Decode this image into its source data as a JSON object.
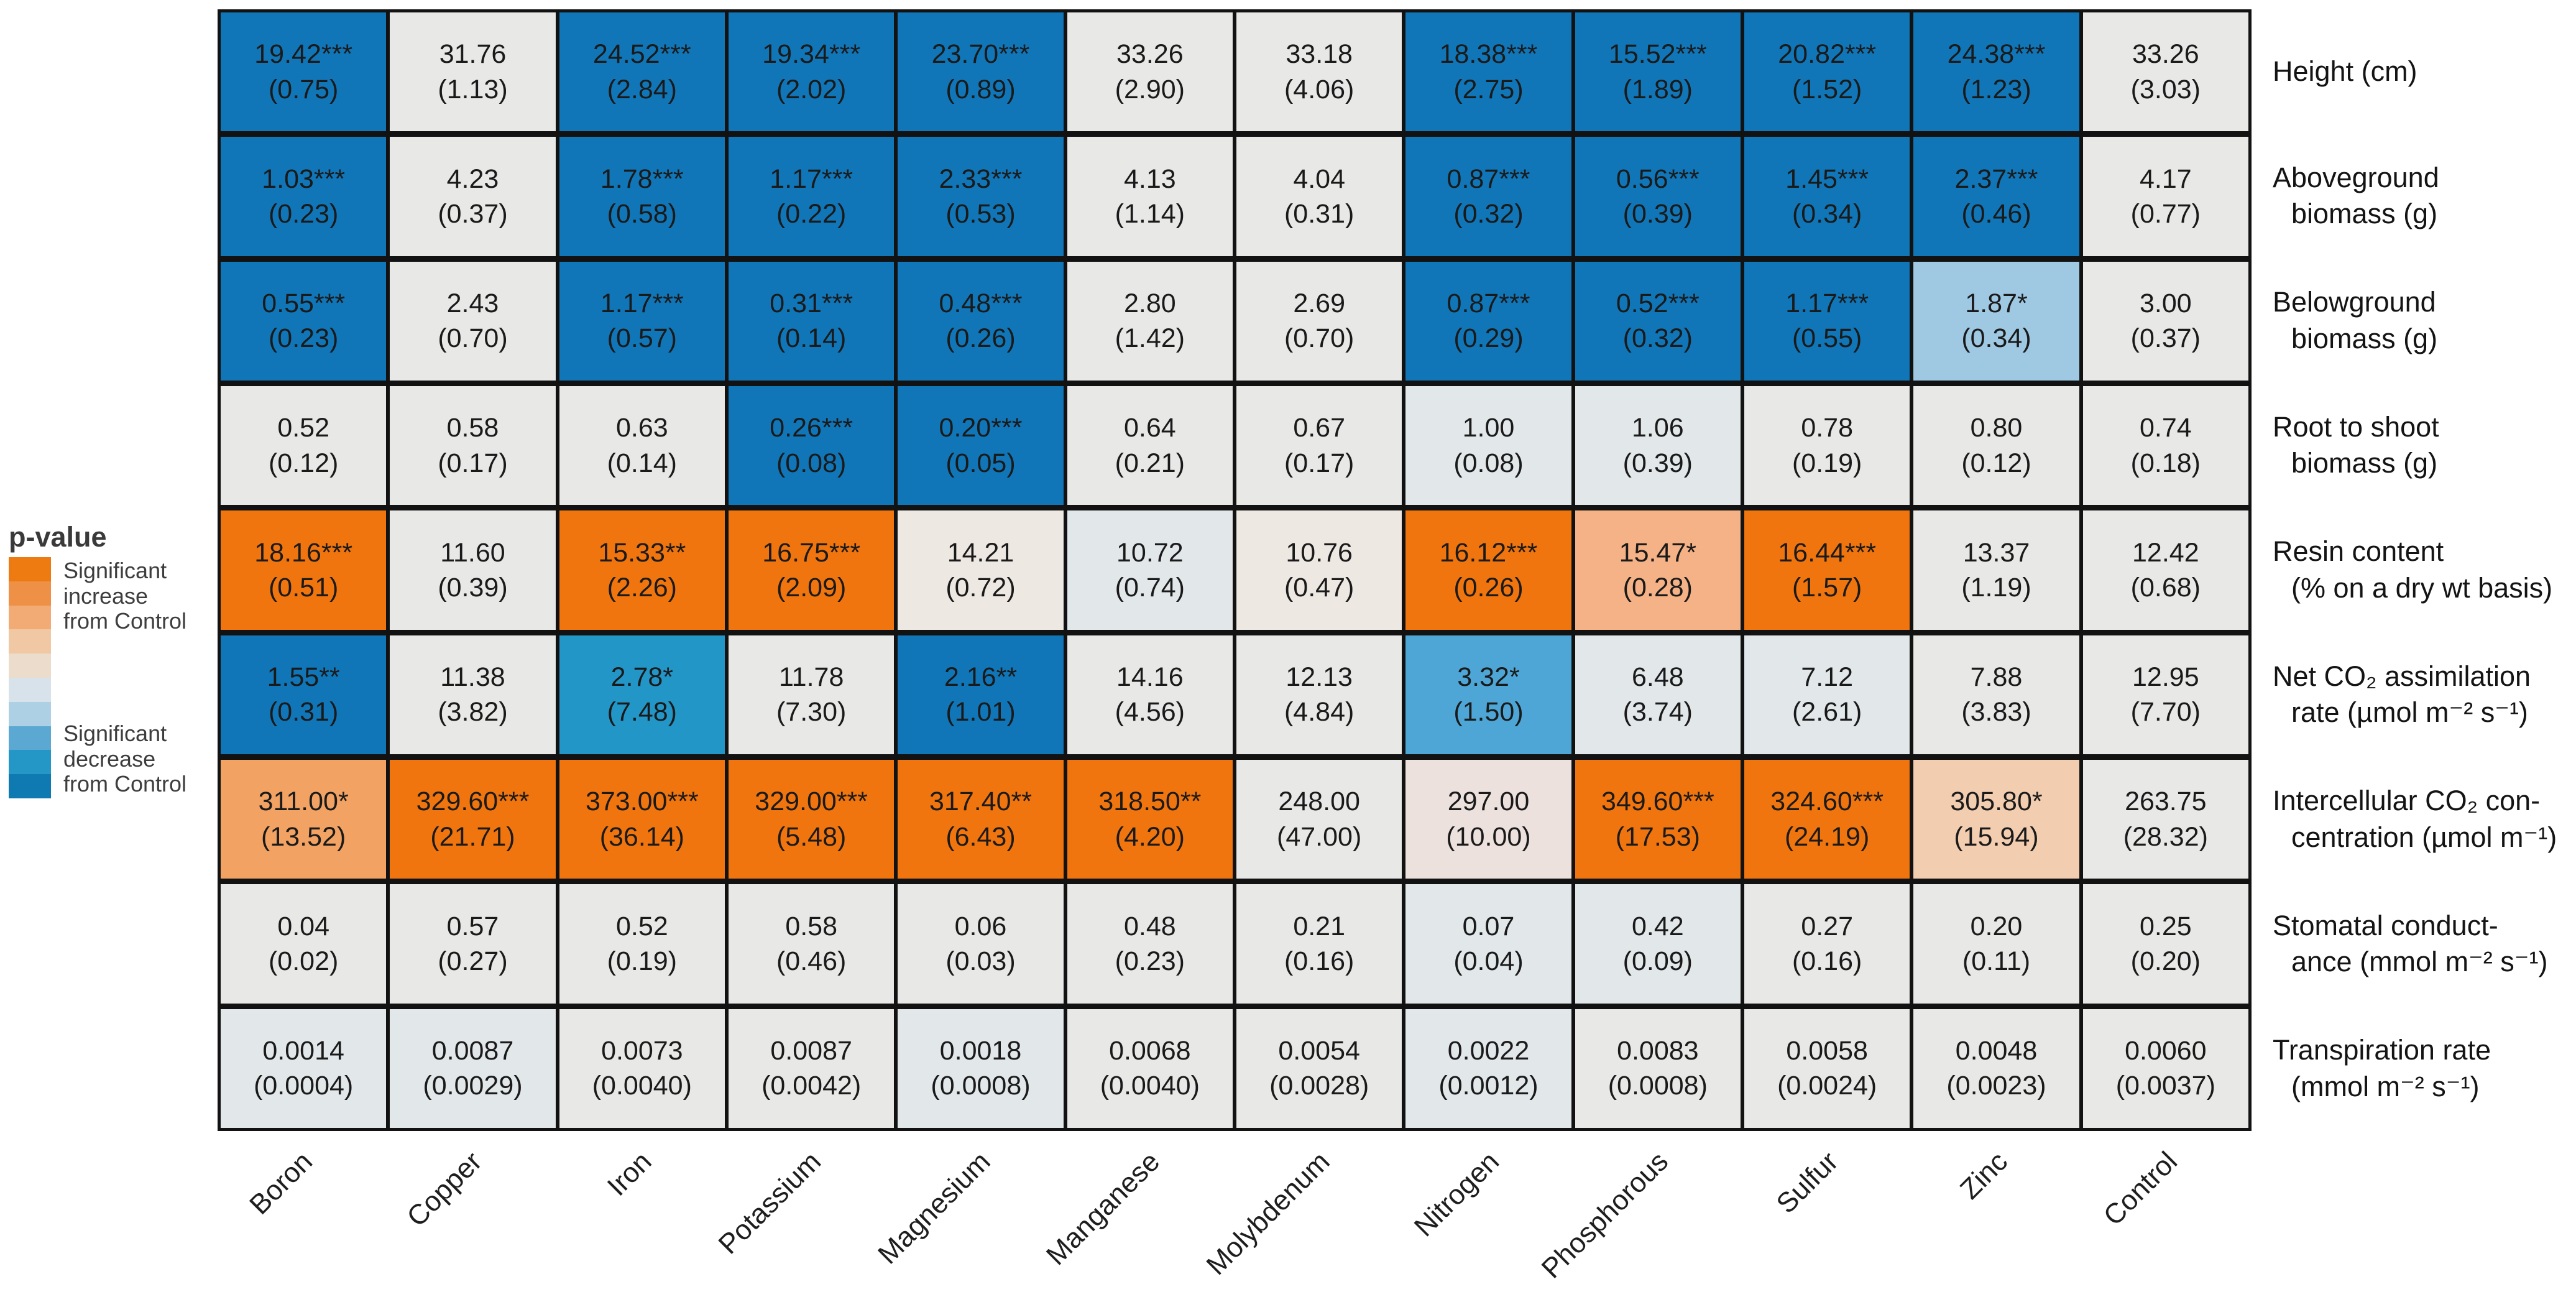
{
  "legend": {
    "title": "p-value",
    "increase_lines": [
      "Significant",
      "increase",
      "from Control"
    ],
    "decrease_lines": [
      "Significant",
      "decrease",
      "from Control"
    ],
    "gradient": [
      "#ee7b12",
      "#ee9045",
      "#f3ab75",
      "#f0c8a4",
      "#ebdccb",
      "#d8e2ea",
      "#aed0e4",
      "#5ba9d3",
      "#2497c6",
      "#0f79b2"
    ]
  },
  "palette": {
    "orange": "#f1750e",
    "orange2": "#f2a263",
    "orange3": "#f5b286",
    "orange4": "#f3cdb0",
    "grayp": "#ece1dd",
    "grayw": "#eee8e3",
    "gray": "#e8e8e7",
    "grayb": "#e2e7ea",
    "blue4": "#9fc9e3",
    "blue3": "#4ea6d6",
    "blue2": "#2396c8",
    "blue": "#1076b8"
  },
  "chart_data": {
    "type": "heatmap",
    "legend_position": "left",
    "color_scale_label": "p-value",
    "color_scale_high": "Significant increase from Control",
    "color_scale_low": "Significant decrease from Control",
    "columns": [
      "Boron",
      "Copper",
      "Iron",
      "Potassium",
      "Magnesium",
      "Manganese",
      "Molybdenum",
      "Nitrogen",
      "Phosphorous",
      "Sulfur",
      "Zinc",
      "Control"
    ],
    "rows": [
      {
        "label_lines": [
          "Height (cm)"
        ],
        "cells": [
          {
            "v": "19.42***",
            "se": "(0.75)",
            "c": "blue"
          },
          {
            "v": "31.76",
            "se": "(1.13)",
            "c": "gray"
          },
          {
            "v": "24.52***",
            "se": "(2.84)",
            "c": "blue"
          },
          {
            "v": "19.34***",
            "se": "(2.02)",
            "c": "blue"
          },
          {
            "v": "23.70***",
            "se": "(0.89)",
            "c": "blue"
          },
          {
            "v": "33.26",
            "se": "(2.90)",
            "c": "gray"
          },
          {
            "v": "33.18",
            "se": "(4.06)",
            "c": "gray"
          },
          {
            "v": "18.38***",
            "se": "(2.75)",
            "c": "blue"
          },
          {
            "v": "15.52***",
            "se": "(1.89)",
            "c": "blue"
          },
          {
            "v": "20.82***",
            "se": "(1.52)",
            "c": "blue"
          },
          {
            "v": "24.38***",
            "se": "(1.23)",
            "c": "blue"
          },
          {
            "v": "33.26",
            "se": "(3.03)",
            "c": "gray"
          }
        ]
      },
      {
        "label_lines": [
          "Aboveground",
          "biomass (g)"
        ],
        "cells": [
          {
            "v": "1.03***",
            "se": "(0.23)",
            "c": "blue"
          },
          {
            "v": "4.23",
            "se": "(0.37)",
            "c": "gray"
          },
          {
            "v": "1.78***",
            "se": "(0.58)",
            "c": "blue"
          },
          {
            "v": "1.17***",
            "se": "(0.22)",
            "c": "blue"
          },
          {
            "v": "2.33***",
            "se": "(0.53)",
            "c": "blue"
          },
          {
            "v": "4.13",
            "se": "(1.14)",
            "c": "gray"
          },
          {
            "v": "4.04",
            "se": "(0.31)",
            "c": "gray"
          },
          {
            "v": "0.87***",
            "se": "(0.32)",
            "c": "blue"
          },
          {
            "v": "0.56***",
            "se": "(0.39)",
            "c": "blue"
          },
          {
            "v": "1.45***",
            "se": "(0.34)",
            "c": "blue"
          },
          {
            "v": "2.37***",
            "se": "(0.46)",
            "c": "blue"
          },
          {
            "v": "4.17",
            "se": "(0.77)",
            "c": "gray"
          }
        ]
      },
      {
        "label_lines": [
          "Belowground",
          "biomass (g)"
        ],
        "cells": [
          {
            "v": "0.55***",
            "se": "(0.23)",
            "c": "blue"
          },
          {
            "v": "2.43",
            "se": "(0.70)",
            "c": "gray"
          },
          {
            "v": "1.17***",
            "se": "(0.57)",
            "c": "blue"
          },
          {
            "v": "0.31***",
            "se": "(0.14)",
            "c": "blue"
          },
          {
            "v": "0.48***",
            "se": "(0.26)",
            "c": "blue"
          },
          {
            "v": "2.80",
            "se": "(1.42)",
            "c": "gray"
          },
          {
            "v": "2.69",
            "se": "(0.70)",
            "c": "gray"
          },
          {
            "v": "0.87***",
            "se": "(0.29)",
            "c": "blue"
          },
          {
            "v": "0.52***",
            "se": "(0.32)",
            "c": "blue"
          },
          {
            "v": "1.17***",
            "se": "(0.55)",
            "c": "blue"
          },
          {
            "v": "1.87*",
            "se": "(0.34)",
            "c": "blue4"
          },
          {
            "v": "3.00",
            "se": "(0.37)",
            "c": "gray"
          }
        ]
      },
      {
        "label_lines": [
          "Root to shoot",
          "biomass (g)"
        ],
        "cells": [
          {
            "v": "0.52",
            "se": "(0.12)",
            "c": "gray"
          },
          {
            "v": "0.58",
            "se": "(0.17)",
            "c": "gray"
          },
          {
            "v": "0.63",
            "se": "(0.14)",
            "c": "gray"
          },
          {
            "v": "0.26***",
            "se": "(0.08)",
            "c": "blue"
          },
          {
            "v": "0.20***",
            "se": "(0.05)",
            "c": "blue"
          },
          {
            "v": "0.64",
            "se": "(0.21)",
            "c": "gray"
          },
          {
            "v": "0.67",
            "se": "(0.17)",
            "c": "gray"
          },
          {
            "v": "1.00",
            "se": "(0.08)",
            "c": "grayb"
          },
          {
            "v": "1.06",
            "se": "(0.39)",
            "c": "grayb"
          },
          {
            "v": "0.78",
            "se": "(0.19)",
            "c": "gray"
          },
          {
            "v": "0.80",
            "se": "(0.12)",
            "c": "gray"
          },
          {
            "v": "0.74",
            "se": "(0.18)",
            "c": "gray"
          }
        ]
      },
      {
        "label_lines": [
          "Resin content",
          "(% on a dry wt basis)"
        ],
        "cells": [
          {
            "v": "18.16***",
            "se": "(0.51)",
            "c": "orange"
          },
          {
            "v": "11.60",
            "se": "(0.39)",
            "c": "gray"
          },
          {
            "v": "15.33**",
            "se": "(2.26)",
            "c": "orange"
          },
          {
            "v": "16.75***",
            "se": "(2.09)",
            "c": "orange"
          },
          {
            "v": "14.21",
            "se": "(0.72)",
            "c": "grayw"
          },
          {
            "v": "10.72",
            "se": "(0.74)",
            "c": "grayb"
          },
          {
            "v": "10.76",
            "se": "(0.47)",
            "c": "grayw"
          },
          {
            "v": "16.12***",
            "se": "(0.26)",
            "c": "orange"
          },
          {
            "v": "15.47*",
            "se": "(0.28)",
            "c": "orange3"
          },
          {
            "v": "16.44***",
            "se": "(1.57)",
            "c": "orange"
          },
          {
            "v": "13.37",
            "se": "(1.19)",
            "c": "gray"
          },
          {
            "v": "12.42",
            "se": "(0.68)",
            "c": "gray"
          }
        ]
      },
      {
        "label_lines": [
          "Net CO₂ assimilation",
          "rate (µmol m⁻² s⁻¹)"
        ],
        "cells": [
          {
            "v": "1.55**",
            "se": "(0.31)",
            "c": "blue"
          },
          {
            "v": "11.38",
            "se": "(3.82)",
            "c": "gray"
          },
          {
            "v": "2.78*",
            "se": "(7.48)",
            "c": "blue2"
          },
          {
            "v": "11.78",
            "se": "(7.30)",
            "c": "gray"
          },
          {
            "v": "2.16**",
            "se": "(1.01)",
            "c": "blue"
          },
          {
            "v": "14.16",
            "se": "(4.56)",
            "c": "gray"
          },
          {
            "v": "12.13",
            "se": "(4.84)",
            "c": "gray"
          },
          {
            "v": "3.32*",
            "se": "(1.50)",
            "c": "blue3"
          },
          {
            "v": "6.48",
            "se": "(3.74)",
            "c": "grayb"
          },
          {
            "v": "7.12",
            "se": "(2.61)",
            "c": "grayb"
          },
          {
            "v": "7.88",
            "se": "(3.83)",
            "c": "gray"
          },
          {
            "v": "12.95",
            "se": "(7.70)",
            "c": "gray"
          }
        ]
      },
      {
        "label_lines": [
          "Intercellular CO₂ con-",
          "centration (µmol m⁻¹)"
        ],
        "cells": [
          {
            "v": "311.00*",
            "se": "(13.52)",
            "c": "orange2"
          },
          {
            "v": "329.60***",
            "se": "(21.71)",
            "c": "orange"
          },
          {
            "v": "373.00***",
            "se": "(36.14)",
            "c": "orange"
          },
          {
            "v": "329.00***",
            "se": "(5.48)",
            "c": "orange"
          },
          {
            "v": "317.40**",
            "se": "(6.43)",
            "c": "orange"
          },
          {
            "v": "318.50**",
            "se": "(4.20)",
            "c": "orange"
          },
          {
            "v": "248.00",
            "se": "(47.00)",
            "c": "gray"
          },
          {
            "v": "297.00",
            "se": "(10.00)",
            "c": "grayp"
          },
          {
            "v": "349.60***",
            "se": "(17.53)",
            "c": "orange"
          },
          {
            "v": "324.60***",
            "se": "(24.19)",
            "c": "orange"
          },
          {
            "v": "305.80*",
            "se": "(15.94)",
            "c": "orange4"
          },
          {
            "v": "263.75",
            "se": "(28.32)",
            "c": "gray"
          }
        ]
      },
      {
        "label_lines": [
          "Stomatal conduct-",
          "ance (mmol m⁻² s⁻¹)"
        ],
        "cells": [
          {
            "v": "0.04",
            "se": "(0.02)",
            "c": "gray"
          },
          {
            "v": "0.57",
            "se": "(0.27)",
            "c": "gray"
          },
          {
            "v": "0.52",
            "se": "(0.19)",
            "c": "gray"
          },
          {
            "v": "0.58",
            "se": "(0.46)",
            "c": "gray"
          },
          {
            "v": "0.06",
            "se": "(0.03)",
            "c": "gray"
          },
          {
            "v": "0.48",
            "se": "(0.23)",
            "c": "gray"
          },
          {
            "v": "0.21",
            "se": "(0.16)",
            "c": "gray"
          },
          {
            "v": "0.07",
            "se": "(0.04)",
            "c": "grayb"
          },
          {
            "v": "0.42",
            "se": "(0.09)",
            "c": "grayb"
          },
          {
            "v": "0.27",
            "se": "(0.16)",
            "c": "gray"
          },
          {
            "v": "0.20",
            "se": "(0.11)",
            "c": "gray"
          },
          {
            "v": "0.25",
            "se": "(0.20)",
            "c": "gray"
          }
        ]
      },
      {
        "label_lines": [
          "Transpiration rate",
          "(mmol m⁻² s⁻¹)"
        ],
        "cells": [
          {
            "v": "0.0014",
            "se": "(0.0004)",
            "c": "grayb"
          },
          {
            "v": "0.0087",
            "se": "(0.0029)",
            "c": "grayb"
          },
          {
            "v": "0.0073",
            "se": "(0.0040)",
            "c": "gray"
          },
          {
            "v": "0.0087",
            "se": "(0.0042)",
            "c": "gray"
          },
          {
            "v": "0.0018",
            "se": "(0.0008)",
            "c": "grayb"
          },
          {
            "v": "0.0068",
            "se": "(0.0040)",
            "c": "gray"
          },
          {
            "v": "0.0054",
            "se": "(0.0028)",
            "c": "gray"
          },
          {
            "v": "0.0022",
            "se": "(0.0012)",
            "c": "grayb"
          },
          {
            "v": "0.0083",
            "se": "(0.0008)",
            "c": "gray"
          },
          {
            "v": "0.0058",
            "se": "(0.0024)",
            "c": "gray"
          },
          {
            "v": "0.0048",
            "se": "(0.0023)",
            "c": "gray"
          },
          {
            "v": "0.0060",
            "se": "(0.0037)",
            "c": "gray"
          }
        ]
      }
    ]
  }
}
